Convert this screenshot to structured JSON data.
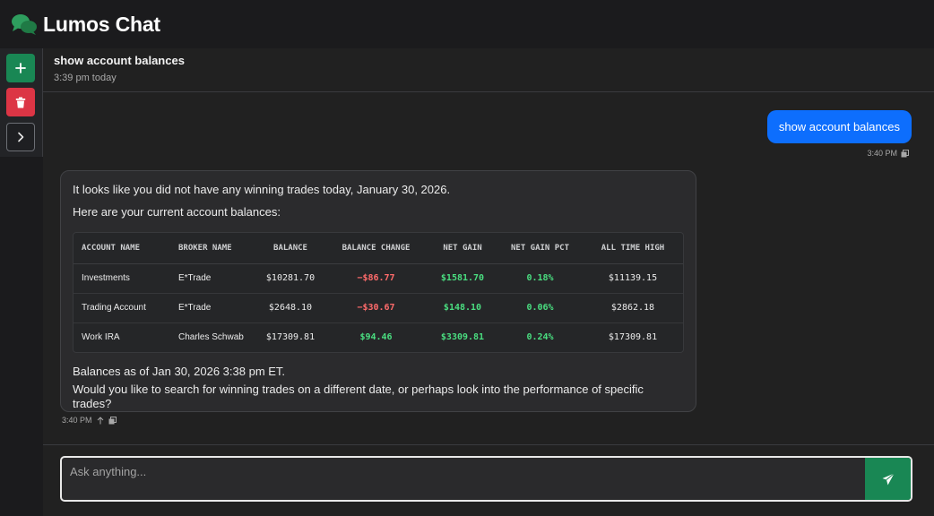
{
  "app": {
    "title": "Lumos Chat",
    "logo_icon": "chat-bubbles-icon",
    "accent": "#198754"
  },
  "sidebar": {
    "new_icon": "plus-icon",
    "delete_icon": "trash-icon",
    "expand_icon": "chevron-right-icon"
  },
  "chat": {
    "title": "show account balances",
    "time": "3:39 pm today"
  },
  "messages": {
    "user": {
      "text": "show account balances",
      "time": "3:40 PM"
    },
    "assistant": {
      "intro": "It looks like you did not have any winning trades today, January 30, 2026.",
      "lead": "Here are your current account balances:",
      "table": {
        "headers": [
          "Account Name",
          "Broker Name",
          "Balance",
          "Balance Change",
          "Net Gain",
          "Net Gain Pct",
          "All Time High"
        ],
        "rows": [
          [
            "Investments",
            "E*Trade",
            "$10281.70",
            "−$86.77",
            "$1581.70",
            "0.18%",
            "$11139.15"
          ],
          [
            "Trading Account",
            "E*Trade",
            "$2648.10",
            "−$30.67",
            "$148.10",
            "0.06%",
            "$2862.18"
          ],
          [
            "Work IRA",
            "Charles Schwab",
            "$17309.81",
            "$94.46",
            "$3309.81",
            "0.24%",
            "$17309.81"
          ]
        ]
      },
      "as_of": "Balances as of Jan 30, 2026 3:38 pm ET.",
      "follow_up": "Would you like to search for winning trades on a different date, or perhaps look into the performance of specific trades?",
      "time": "3:40 PM"
    }
  },
  "composer": {
    "placeholder": "Ask anything...",
    "send_icon": "send-icon"
  },
  "colors": {
    "user_bubble": "#0d6efd",
    "negative": "#ff6b6b",
    "positive": "#4ade80",
    "delete": "#dc3545"
  }
}
